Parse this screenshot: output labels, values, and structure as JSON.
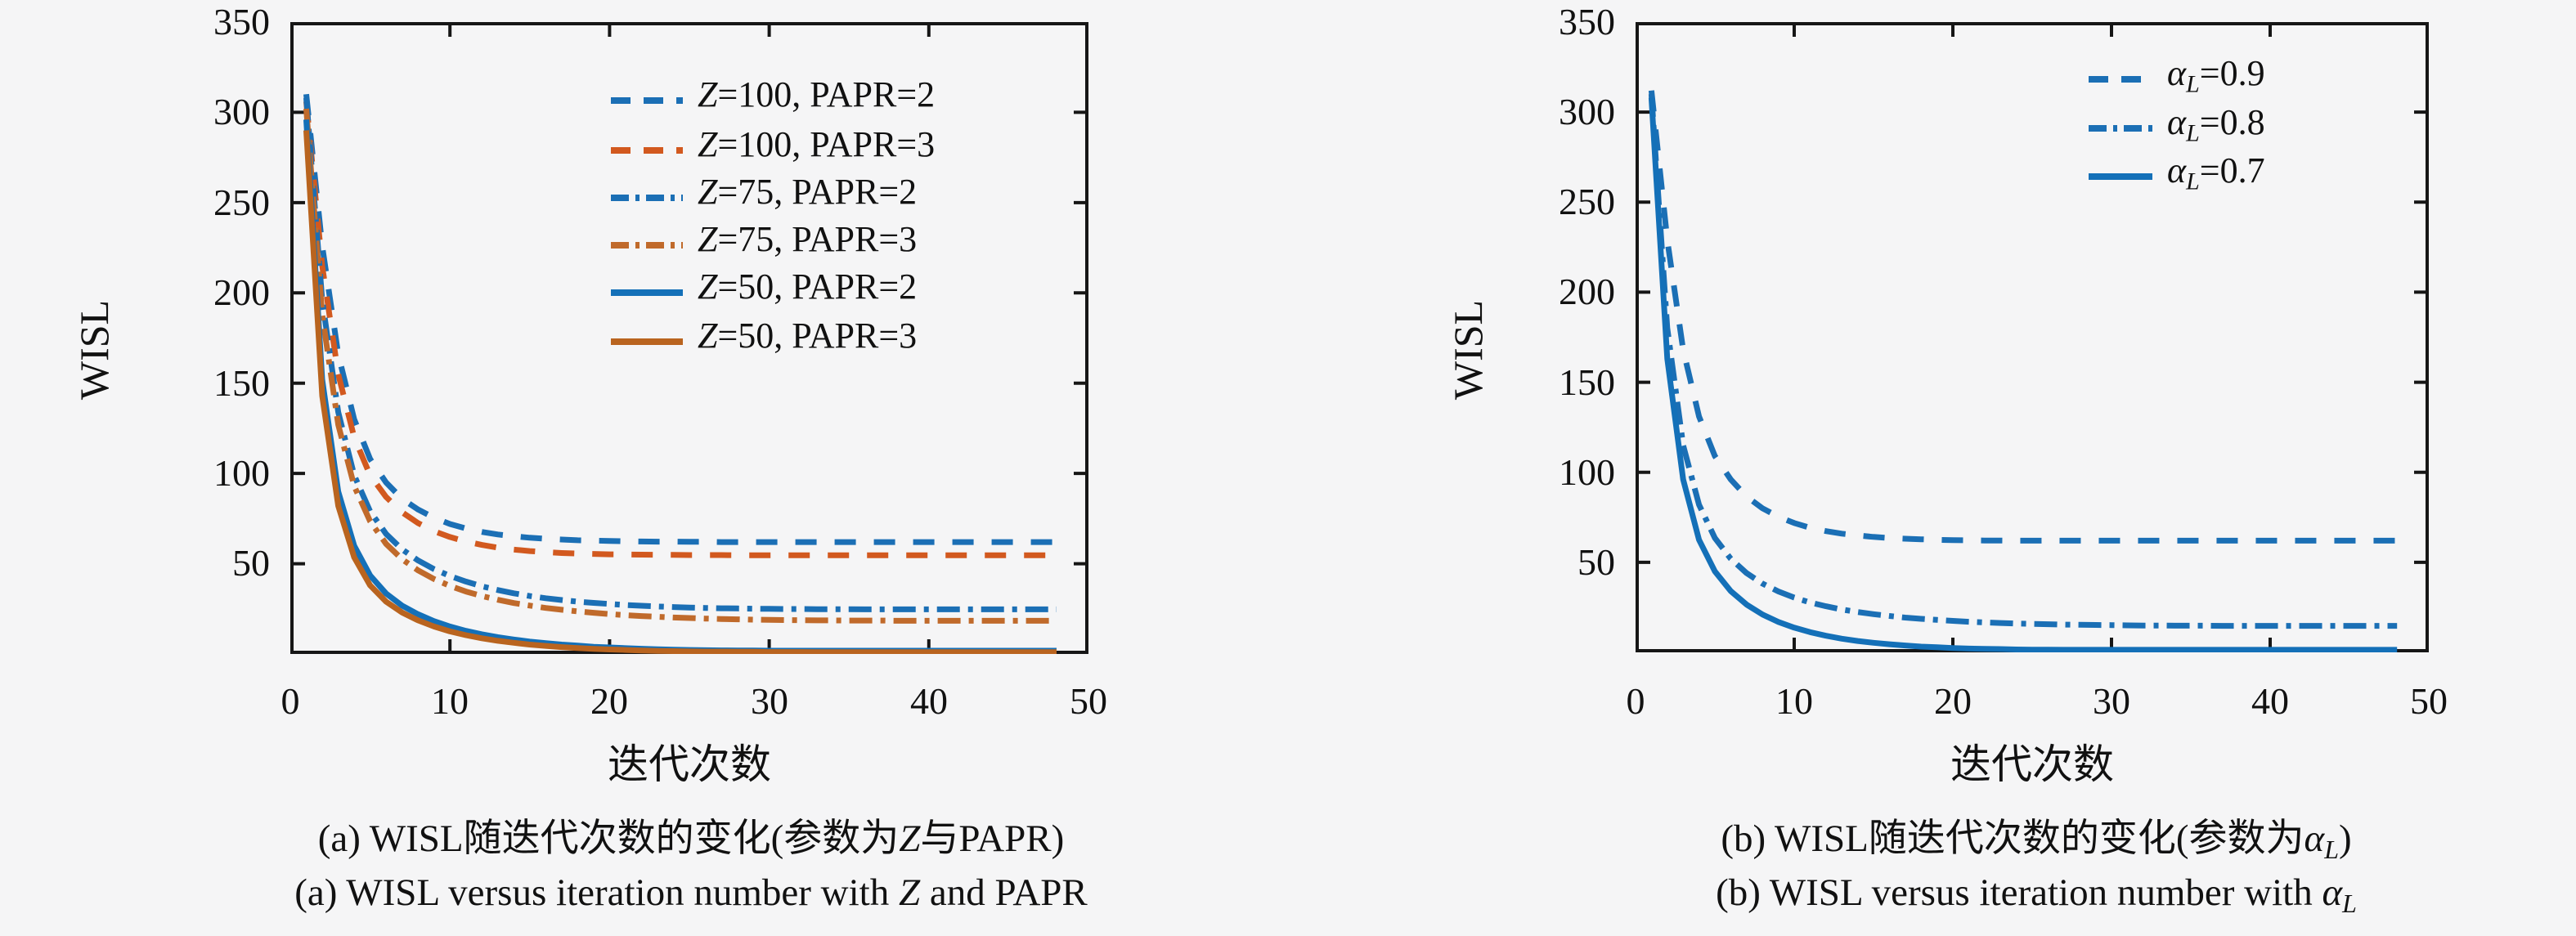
{
  "page": {
    "background": "#f5f5f6",
    "axis_color": "#161616",
    "text_color": "#111111"
  },
  "chart_data": [
    {
      "type": "line",
      "panel": "a",
      "title": "",
      "xlabel": "迭代次数",
      "ylabel": "WISL",
      "xlim": [
        0,
        50
      ],
      "ylim": [
        0,
        350
      ],
      "xticks": [
        0,
        10,
        20,
        30,
        40,
        50
      ],
      "yticks": [
        350,
        300,
        250,
        200,
        150,
        100,
        50
      ],
      "grid": false,
      "legend_position": "inside upper center-right",
      "caption_zh": {
        "pre": "(a) WISL随迭代次数的变化(参数为",
        "var": "Z",
        "sub": "",
        "post": "与PAPR)"
      },
      "caption_en": {
        "pre": "(a) WISL versus iteration number with ",
        "var": "Z",
        "sub": "",
        "post": " and PAPR"
      },
      "x": [
        1,
        2,
        3,
        4,
        5,
        6,
        7,
        8,
        9,
        10,
        11,
        12,
        13,
        14,
        15,
        16,
        17,
        18,
        19,
        20,
        21,
        22,
        23,
        24,
        25,
        26,
        27,
        28,
        29,
        30,
        31,
        32,
        33,
        34,
        35,
        36,
        37,
        38,
        39,
        40,
        41,
        42,
        43,
        44,
        45,
        46,
        47,
        48
      ],
      "series": [
        {
          "name": "Z=100, PAPR=2",
          "sym": "Z",
          "sub": "",
          "rest": "=100, PAPR=2",
          "color": "#1b6fb5",
          "dash": "dashed",
          "values": [
            310,
            226,
            166,
            130,
            108,
            95,
            86,
            80,
            75.5,
            72,
            69.5,
            67.6,
            66.2,
            65.2,
            64.4,
            63.8,
            63.4,
            63,
            62.8,
            62.6,
            62.4,
            62.3,
            62.2,
            62.2,
            62.1,
            62.1,
            62,
            62,
            62,
            62,
            62,
            62,
            62,
            62,
            62,
            62,
            62,
            62,
            62,
            62,
            62,
            62,
            62,
            62,
            62,
            62,
            62,
            62
          ]
        },
        {
          "name": "Z=100, PAPR=3",
          "sym": "Z",
          "sub": "",
          "rest": "=100, PAPR=3",
          "color": "#d2591f",
          "dash": "dashed",
          "values": [
            306,
            215,
            155,
            120,
            99,
            87,
            78.5,
            72.5,
            68,
            64.8,
            62.3,
            60.4,
            58.9,
            57.8,
            57,
            56.4,
            55.9,
            55.6,
            55.4,
            55.2,
            55.1,
            55,
            54.9,
            54.9,
            54.8,
            54.8,
            54.8,
            54.7,
            54.7,
            54.7,
            54.7,
            54.7,
            54.7,
            54.7,
            54.7,
            54.7,
            54.7,
            54.7,
            54.7,
            54.7,
            54.7,
            54.7,
            54.7,
            54.7,
            54.7,
            54.7,
            54.7,
            54.7
          ]
        },
        {
          "name": "Z=75, PAPR=2",
          "sym": "Z",
          "sub": "",
          "rest": "=75, PAPR=2",
          "color": "#1b6fb5",
          "dash": "dashdot",
          "values": [
            308,
            196,
            134,
            99,
            79,
            66.5,
            58,
            51.8,
            47,
            43.2,
            40.1,
            37.5,
            35.4,
            33.6,
            32.1,
            30.9,
            29.9,
            29,
            28.3,
            27.7,
            27.1,
            26.7,
            26.3,
            26,
            25.7,
            25.5,
            25.3,
            25.2,
            25.1,
            25,
            24.9,
            24.9,
            24.8,
            24.8,
            24.8,
            24.7,
            24.7,
            24.7,
            24.7,
            24.7,
            24.7,
            24.7,
            24.7,
            24.7,
            24.7,
            24.7,
            24.7,
            24.7
          ]
        },
        {
          "name": "Z=75, PAPR=3",
          "sym": "Z",
          "sub": "",
          "rest": "=75, PAPR=3",
          "color": "#c06a2b",
          "dash": "dashdot",
          "values": [
            302,
            188,
            127,
            93,
            73.5,
            61,
            52.5,
            46.3,
            41.5,
            37.7,
            34.6,
            32.1,
            30,
            28.2,
            26.8,
            25.5,
            24.5,
            23.6,
            22.8,
            22.1,
            21.5,
            21,
            20.6,
            20.2,
            19.9,
            19.6,
            19.4,
            19.2,
            19,
            18.9,
            18.8,
            18.7,
            18.6,
            18.6,
            18.5,
            18.5,
            18.5,
            18.4,
            18.4,
            18.4,
            18.4,
            18.4,
            18.4,
            18.4,
            18.4,
            18.4,
            18.4,
            18.4
          ]
        },
        {
          "name": "Z=50, PAPR=2",
          "sym": "Z",
          "sub": "",
          "rest": "=50, PAPR=2",
          "color": "#1470b8",
          "dash": "solid",
          "values": [
            296,
            152,
            90,
            60,
            43.5,
            33.5,
            26.8,
            22,
            18.2,
            15.2,
            12.8,
            10.9,
            9.3,
            8,
            6.9,
            6,
            5.2,
            4.6,
            4,
            3.6,
            3.2,
            2.9,
            2.6,
            2.4,
            2.2,
            2.1,
            2,
            1.9,
            1.9,
            1.8,
            1.8,
            1.8,
            1.8,
            1.8,
            1.8,
            1.8,
            1.8,
            1.8,
            1.8,
            1.8,
            1.8,
            1.8,
            1.8,
            1.8,
            1.8,
            1.8,
            1.8,
            1.8
          ]
        },
        {
          "name": "Z=50, PAPR=3",
          "sym": "Z",
          "sub": "",
          "rest": "=50, PAPR=3",
          "color": "#b9641f",
          "dash": "solid",
          "values": [
            290,
            143,
            82,
            53.5,
            38,
            29,
            23,
            18.6,
            15.2,
            12.5,
            10.4,
            8.7,
            7.3,
            6.2,
            5.2,
            4.5,
            3.8,
            3.3,
            2.8,
            2.5,
            2.2,
            1.9,
            1.7,
            1.6,
            1.4,
            1.3,
            1.3,
            1.2,
            1.2,
            1.1,
            1.1,
            1.1,
            1,
            1,
            1,
            1,
            1,
            1,
            1,
            1,
            1,
            1,
            1,
            1,
            1,
            1,
            1,
            1
          ]
        }
      ]
    },
    {
      "type": "line",
      "panel": "b",
      "title": "",
      "xlabel": "迭代次数",
      "ylabel": "WISL",
      "xlim": [
        0,
        50
      ],
      "ylim": [
        0,
        350
      ],
      "xticks": [
        0,
        10,
        20,
        30,
        40,
        50
      ],
      "yticks": [
        350,
        300,
        250,
        200,
        150,
        100,
        50
      ],
      "grid": false,
      "legend_position": "inside upper right",
      "caption_zh": {
        "pre": "(b) WISL随迭代次数的变化(参数为",
        "var": "α",
        "sub": "L",
        "post": ")"
      },
      "caption_en": {
        "pre": "(b) WISL versus iteration number with ",
        "var": "α",
        "sub": "L",
        "post": ""
      },
      "x": [
        1,
        2,
        3,
        4,
        5,
        6,
        7,
        8,
        9,
        10,
        11,
        12,
        13,
        14,
        15,
        16,
        17,
        18,
        19,
        20,
        21,
        22,
        23,
        24,
        25,
        26,
        27,
        28,
        29,
        30,
        31,
        32,
        33,
        34,
        35,
        36,
        37,
        38,
        39,
        40,
        41,
        42,
        43,
        44,
        45,
        46,
        47,
        48
      ],
      "series": [
        {
          "name": "αL=0.9",
          "sym": "α",
          "sub": "L",
          "rest": "=0.9",
          "color": "#1b6fb5",
          "dash": "dashed",
          "values": [
            312,
            229,
            168,
            131,
            109,
            96,
            86.5,
            80,
            75.3,
            71.8,
            69.2,
            67.3,
            65.9,
            64.9,
            64.1,
            63.5,
            63.1,
            62.8,
            62.5,
            62.3,
            62.2,
            62.1,
            62.1,
            62,
            62,
            62,
            62,
            62,
            62,
            62,
            62,
            62,
            62,
            62,
            62,
            62,
            62,
            62,
            62,
            62,
            62,
            62,
            62,
            62,
            62,
            62,
            62,
            62
          ]
        },
        {
          "name": "αL=0.8",
          "sym": "α",
          "sub": "L",
          "rest": "=0.8",
          "color": "#1b6fb5",
          "dash": "dashdot",
          "values": [
            310,
            180,
            115,
            82,
            63.5,
            52,
            44,
            38.2,
            33.8,
            30.4,
            27.7,
            25.6,
            23.8,
            22.4,
            21.2,
            20.2,
            19.3,
            18.6,
            18,
            17.5,
            17,
            16.6,
            16.3,
            16,
            15.8,
            15.6,
            15.4,
            15.3,
            15.2,
            15.1,
            15,
            14.9,
            14.9,
            14.8,
            14.8,
            14.8,
            14.7,
            14.7,
            14.7,
            14.7,
            14.7,
            14.7,
            14.7,
            14.7,
            14.7,
            14.7,
            14.7,
            14.7
          ]
        },
        {
          "name": "αL=0.7",
          "sym": "α",
          "sub": "L",
          "rest": "=0.7",
          "color": "#1470b8",
          "dash": "solid",
          "values": [
            308,
            163,
            96,
            62.5,
            45,
            34,
            26.5,
            21,
            16.9,
            13.7,
            11.2,
            9.2,
            7.6,
            6.3,
            5.3,
            4.5,
            3.8,
            3.2,
            2.8,
            2.4,
            2.1,
            1.9,
            1.8,
            1.6,
            1.5,
            1.5,
            1.4,
            1.4,
            1.4,
            1.4,
            1.4,
            1.4,
            1.4,
            1.4,
            1.4,
            1.4,
            1.4,
            1.4,
            1.4,
            1.4,
            1.4,
            1.4,
            1.4,
            1.4,
            1.4,
            1.4,
            1.4,
            1.4
          ]
        }
      ]
    }
  ]
}
